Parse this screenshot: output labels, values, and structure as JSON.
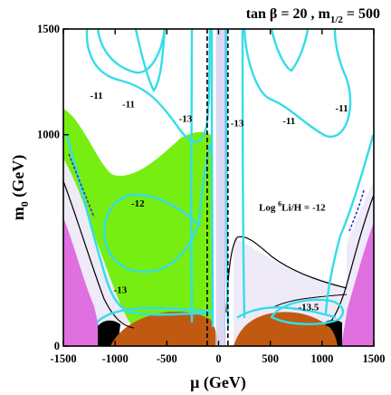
{
  "chart_data": {
    "type": "contour",
    "title_prefix": "tan β = 20 ,  m",
    "title_sub": "1/2",
    "title_suffix": " = 500",
    "xlabel": "μ (GeV)",
    "ylabel_main": "m",
    "ylabel_sub": "0",
    "ylabel_suffix": " (GeV)",
    "xlim": [
      -1500,
      1500
    ],
    "ylim": [
      0,
      1500
    ],
    "xticks": [
      -1500,
      -1000,
      -500,
      0,
      500,
      1000,
      1500
    ],
    "xtick_labels": [
      "-1500",
      "-1000",
      "-500",
      "0",
      "500",
      "1000",
      "1500"
    ],
    "yticks": [
      0,
      1000,
      1500
    ],
    "ytick_labels": [
      "0",
      "1000",
      "1500"
    ],
    "contour_labels": [
      {
        "text": "-11",
        "x": -1180,
        "y": 1170
      },
      {
        "text": "-11",
        "x": -870,
        "y": 1130
      },
      {
        "text": "-13",
        "x": -320,
        "y": 1060
      },
      {
        "text": "-13",
        "x": 180,
        "y": 1040
      },
      {
        "text": "-11",
        "x": 680,
        "y": 1050
      },
      {
        "text": "-11",
        "x": 1190,
        "y": 1110
      },
      {
        "text": "-12",
        "x": -780,
        "y": 660
      },
      {
        "text": "-13",
        "x": -950,
        "y": 250
      },
      {
        "text": "-13.5",
        "x": 870,
        "y": 170
      }
    ],
    "inline_label": {
      "prefix": "Log ",
      "sup": "6",
      "suffix": "Li/H = -12",
      "x": 390,
      "y": 640
    },
    "dashed_lines_mu": [
      -110,
      90
    ],
    "colors": {
      "green_region": "#77ee11",
      "brown_region": "#c05a12",
      "pink_region": "#e070e0",
      "contour": "#33dde8",
      "lavender": "#eeeaf8",
      "black_region": "#000000"
    }
  }
}
